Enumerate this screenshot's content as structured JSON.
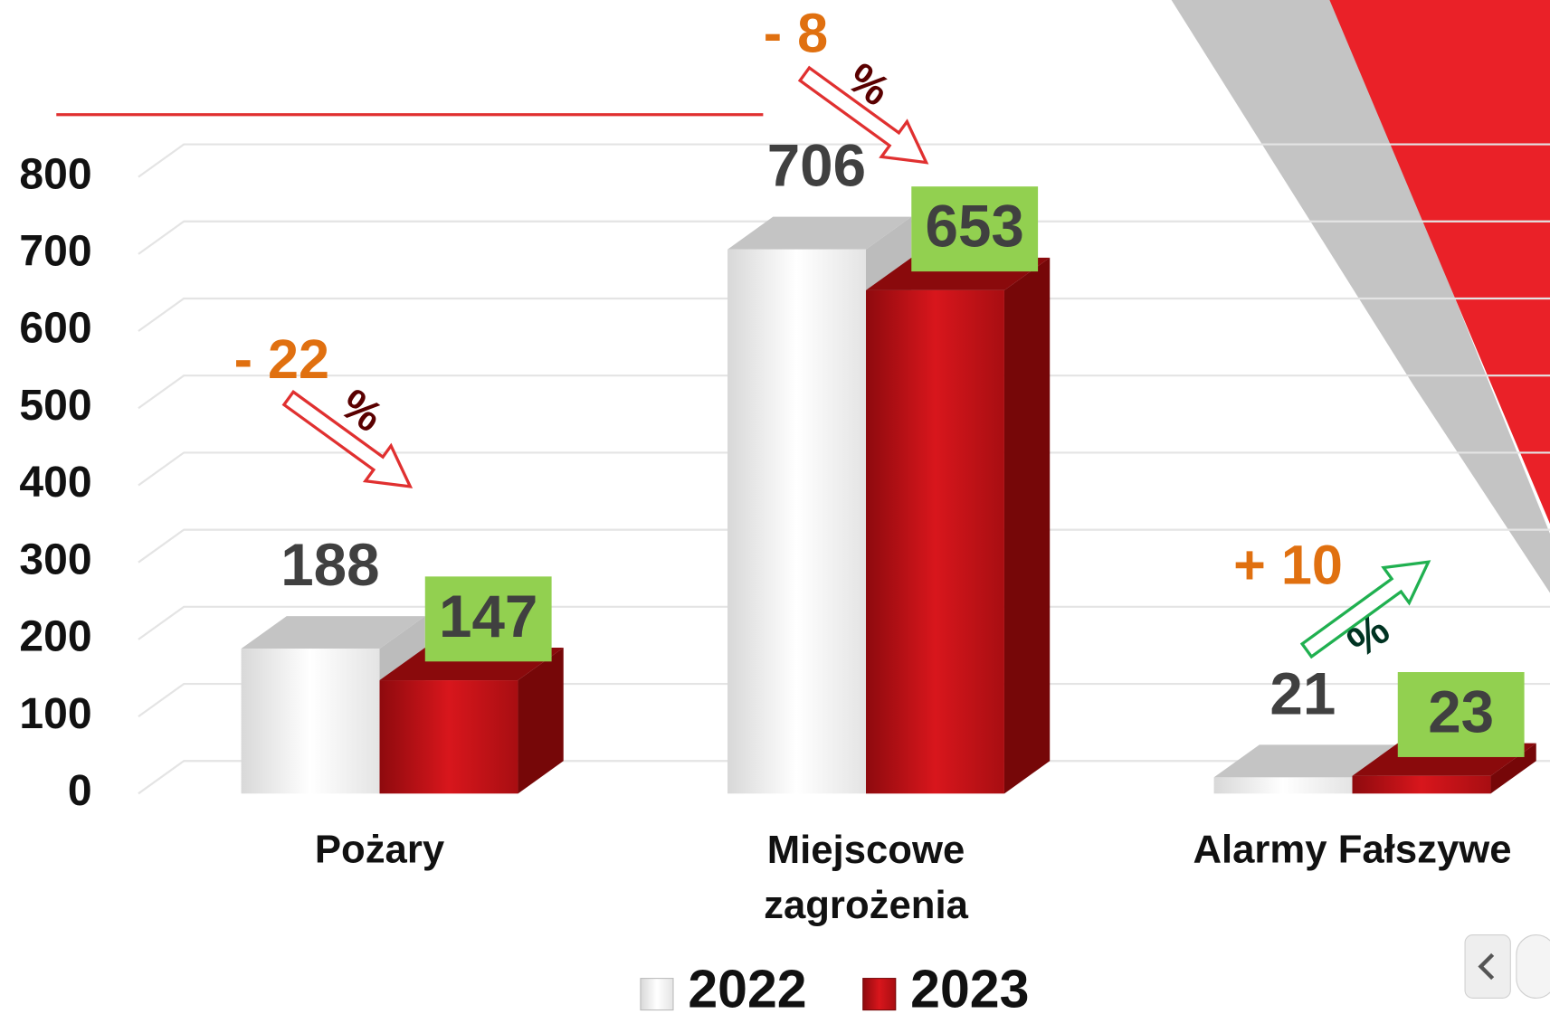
{
  "chart_data": {
    "type": "bar3d",
    "categories": [
      "Pożary",
      "Miejscowe zagrożenia",
      "Alarmy Fałszywe"
    ],
    "series": [
      {
        "name": "2022",
        "color": "#ececec",
        "values": [
          188,
          706,
          21
        ]
      },
      {
        "name": "2023",
        "color": "#c8141a",
        "values": [
          147,
          653,
          23
        ]
      }
    ],
    "ylim": [
      0,
      800
    ],
    "yticks": [
      0,
      100,
      200,
      300,
      400,
      500,
      600,
      700,
      800
    ],
    "grid": true,
    "annotations": [
      {
        "text": "- 22",
        "unit": "%"
      },
      {
        "text": "- 8",
        "unit": "%"
      },
      {
        "text": "+ 10",
        "unit": "%"
      }
    ]
  }
}
